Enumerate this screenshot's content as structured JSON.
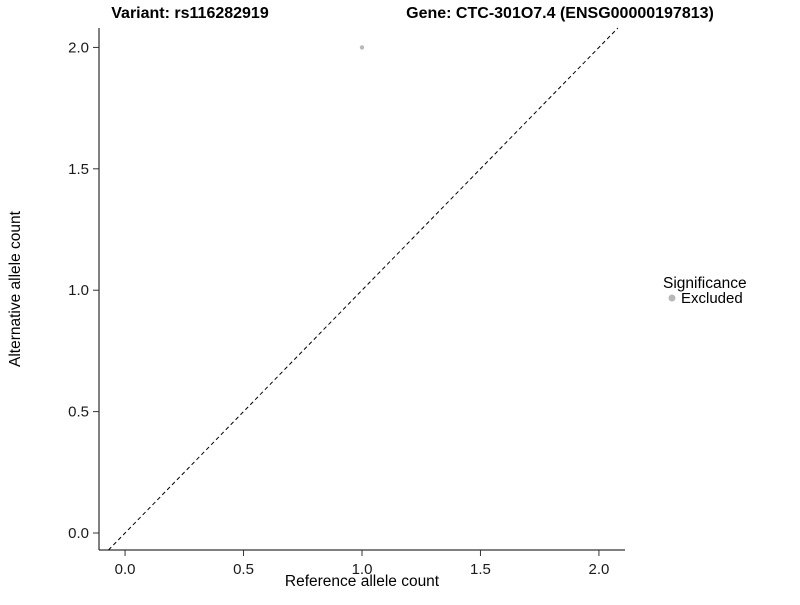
{
  "chart_data": {
    "type": "scatter",
    "title_left": "Variant: rs116282919",
    "title_right": "Gene: CTC-301O7.4 (ENSG00000197813)",
    "xlabel": "Reference allele count",
    "ylabel": "Alternative allele count",
    "xlim": [
      -0.11,
      2.11
    ],
    "ylim": [
      -0.07,
      2.08
    ],
    "x_ticks": [
      0,
      0.5,
      1,
      1.5,
      2
    ],
    "x_tick_labels": [
      "0.0",
      "0.5",
      "1.0",
      "1.5",
      "2.0"
    ],
    "y_ticks": [
      0,
      0.5,
      1,
      1.5,
      2
    ],
    "y_tick_labels": [
      "0.0",
      "0.5",
      "1.0",
      "1.5",
      "2.0"
    ],
    "grid": false,
    "points": [
      {
        "x": 1.0,
        "y": 2.0,
        "series": "Excluded"
      }
    ],
    "point_color": "#b8b8b8",
    "point_radius": 2.2,
    "reference_line": {
      "type": "identity",
      "slope": 1,
      "intercept": 0,
      "style": "dashed",
      "color": "#000000"
    },
    "legend": {
      "position": "right",
      "title": "Significance",
      "entries": [
        {
          "label": "Excluded",
          "color": "#b8b8b8"
        }
      ]
    }
  }
}
